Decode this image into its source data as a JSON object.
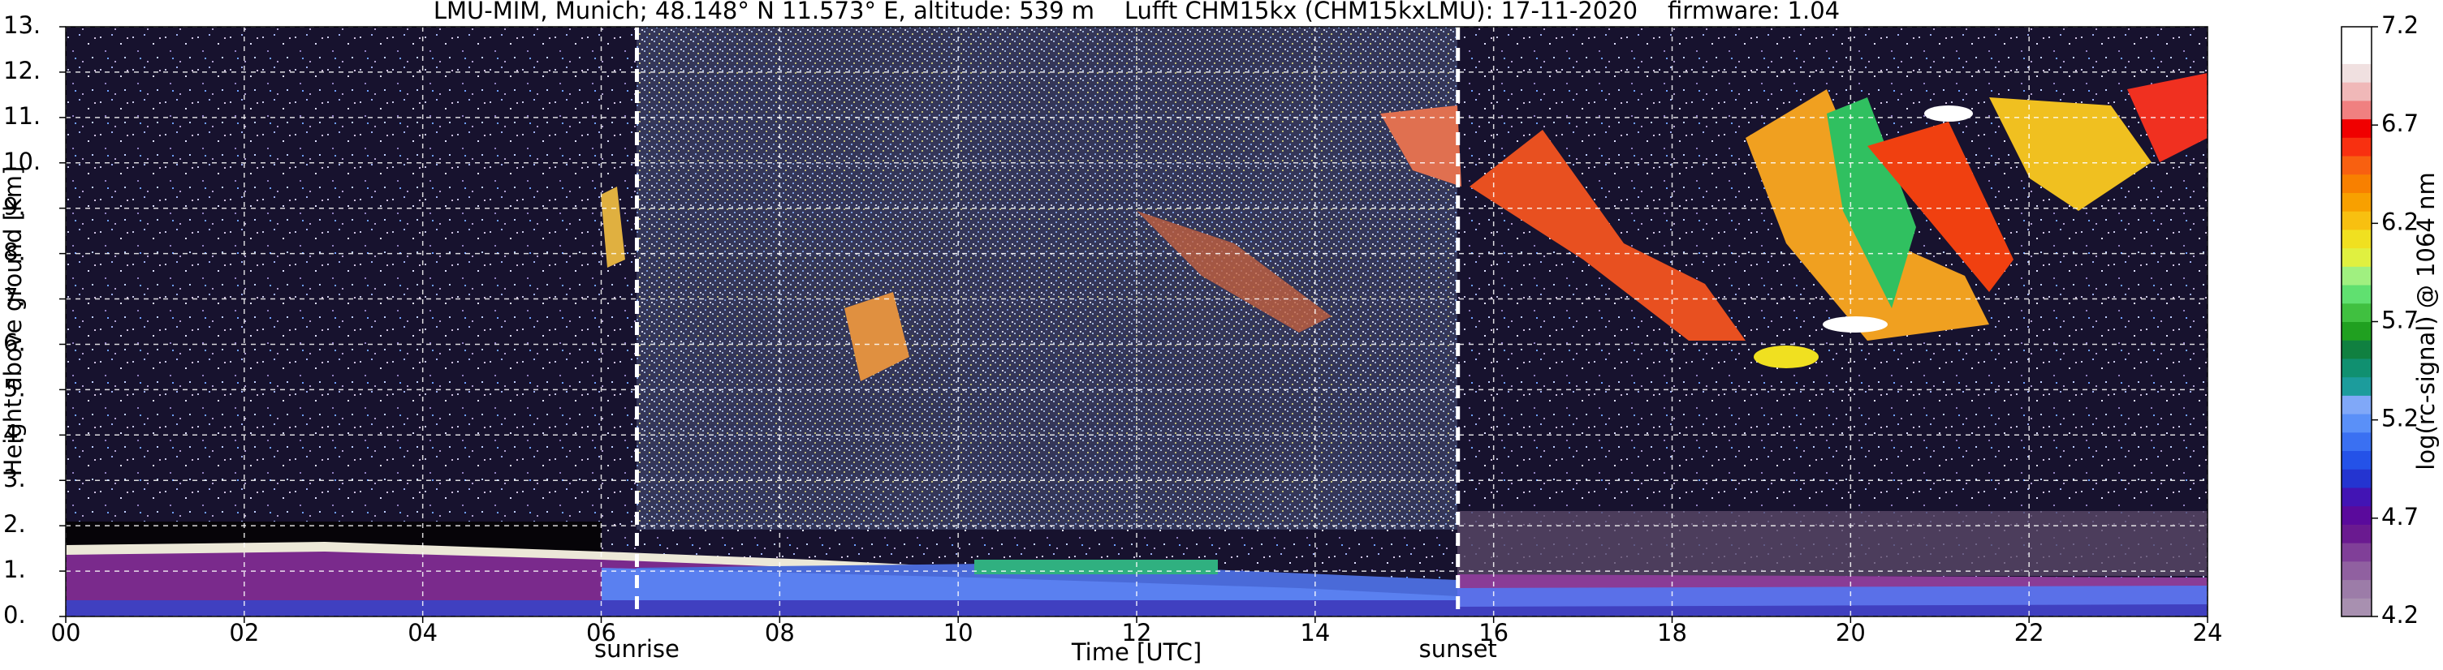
{
  "chart_data": {
    "type": "heatmap",
    "title": "LMU-MIM, Munich; 48.148° N 11.573° E, altitude: 539 m    Lufft CHM15kx (CHM15kxLMU): 17-11-2020    firmware: 1.04",
    "x_label": "Time [UTC]",
    "y_label": "Height above ground [km]",
    "xlim": [
      0,
      24
    ],
    "xticks": [
      {
        "value": 0,
        "label": "00"
      },
      {
        "value": 2,
        "label": "02"
      },
      {
        "value": 4,
        "label": "04"
      },
      {
        "value": 6,
        "label": "06"
      },
      {
        "value": 8,
        "label": "08"
      },
      {
        "value": 10,
        "label": "10"
      },
      {
        "value": 12,
        "label": "12"
      },
      {
        "value": 14,
        "label": "14"
      },
      {
        "value": 16,
        "label": "16"
      },
      {
        "value": 18,
        "label": "18"
      },
      {
        "value": 20,
        "label": "20"
      },
      {
        "value": 22,
        "label": "22"
      },
      {
        "value": 24,
        "label": "24"
      }
    ],
    "ylim": [
      0,
      13
    ],
    "yticks": [
      {
        "value": 0,
        "label": "0."
      },
      {
        "value": 1,
        "label": "1."
      },
      {
        "value": 2,
        "label": "2."
      },
      {
        "value": 3,
        "label": "3."
      },
      {
        "value": 4,
        "label": "4."
      },
      {
        "value": 5,
        "label": "5."
      },
      {
        "value": 6,
        "label": "6."
      },
      {
        "value": 7,
        "label": "7."
      },
      {
        "value": 8,
        "label": "8."
      },
      {
        "value": 9,
        "label": "9."
      },
      {
        "value": 10,
        "label": "10."
      },
      {
        "value": 11,
        "label": "11."
      },
      {
        "value": 12,
        "label": "12."
      },
      {
        "value": 13,
        "label": "13."
      }
    ],
    "grid": true,
    "annotations": [
      {
        "label": "sunrise",
        "x": 6.4
      },
      {
        "label": "sunset",
        "x": 15.6
      }
    ],
    "colorbar": {
      "label": "log(rc-signal) @ 1064 nm",
      "lim": [
        4.2,
        7.2
      ],
      "ticks": [
        4.2,
        4.7,
        5.2,
        5.7,
        6.2,
        6.7,
        7.2
      ],
      "colors": [
        "#a890b0",
        "#9c7ca8",
        "#9060a0",
        "#803f98",
        "#6a1a90",
        "#5a0a9c",
        "#4214b4",
        "#2434d0",
        "#2452e8",
        "#3a70f2",
        "#5a90f8",
        "#80a8f8",
        "#1c9c9c",
        "#109070",
        "#108040",
        "#20a020",
        "#40c040",
        "#60e070",
        "#a0f080",
        "#e0f040",
        "#f0e020",
        "#f8c010",
        "#f8a000",
        "#f88000",
        "#f86010",
        "#f83010",
        "#f00000",
        "#f08080",
        "#f0b8b8",
        "#f0e0e0",
        "#ffffff",
        "#ffffff"
      ]
    }
  }
}
